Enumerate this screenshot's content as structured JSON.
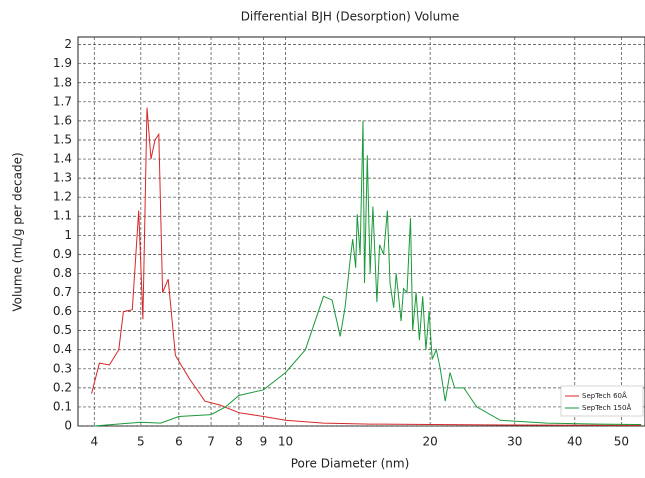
{
  "chart_data": {
    "type": "line",
    "title": "Differential BJH (Desorption) Volume",
    "x_label": "Pore Diameter (nm)",
    "y_label": "Volume (mL/g per decade)",
    "x_scale": "log",
    "grid": true,
    "legend": "bottom-right",
    "xlim": [
      3.7,
      56
    ],
    "ylim": [
      0,
      2.04
    ],
    "xticks": [
      4,
      5,
      6,
      7,
      8,
      9,
      10,
      20,
      30,
      40,
      50
    ],
    "yticks": [
      0,
      0.1,
      0.2,
      0.3,
      0.4,
      0.5,
      0.6,
      0.7,
      0.8,
      0.9,
      1,
      1.1,
      1.2,
      1.3,
      1.4,
      1.5,
      1.6,
      1.7,
      1.8,
      1.9,
      2
    ],
    "series": [
      {
        "name": "SepTech 60Å",
        "color": "#d62728",
        "x": [
          3.95,
          4.1,
          4.3,
          4.5,
          4.6,
          4.8,
          4.95,
          5.05,
          5.15,
          5.25,
          5.35,
          5.45,
          5.55,
          5.7,
          5.9,
          6.3,
          6.8,
          7.3,
          8,
          9,
          10,
          12,
          15,
          20,
          30,
          55
        ],
        "values": [
          0.17,
          0.33,
          0.32,
          0.4,
          0.6,
          0.61,
          1.13,
          0.56,
          1.67,
          1.4,
          1.5,
          1.53,
          0.7,
          0.77,
          0.37,
          0.25,
          0.13,
          0.11,
          0.07,
          0.05,
          0.03,
          0.015,
          0.01,
          0.008,
          0.005,
          0.003
        ]
      },
      {
        "name": "SepTech 150Å",
        "color": "#1a9a3a",
        "x": [
          4,
          5,
          5.5,
          6,
          7,
          7.5,
          8,
          9,
          10,
          11,
          12,
          12.5,
          13,
          13.3,
          13.6,
          13.8,
          14,
          14.1,
          14.3,
          14.5,
          14.6,
          14.8,
          15,
          15.2,
          15.5,
          15.7,
          16,
          16.3,
          16.5,
          16.8,
          17,
          17.4,
          17.6,
          17.9,
          18.2,
          18.4,
          18.7,
          19,
          19.3,
          19.6,
          19.9,
          20.2,
          20.6,
          21,
          21.5,
          22,
          22.5,
          23.5,
          25,
          28,
          35,
          45,
          55
        ],
        "values": [
          0,
          0.02,
          0.015,
          0.05,
          0.06,
          0.1,
          0.16,
          0.19,
          0.28,
          0.4,
          0.68,
          0.66,
          0.47,
          0.62,
          0.85,
          0.98,
          0.83,
          1.11,
          0.9,
          1.6,
          0.75,
          1.42,
          0.8,
          1.15,
          0.65,
          0.95,
          0.9,
          1.13,
          0.75,
          0.62,
          0.8,
          0.55,
          0.72,
          0.7,
          1.09,
          0.5,
          0.7,
          0.45,
          0.68,
          0.4,
          0.6,
          0.35,
          0.4,
          0.3,
          0.13,
          0.28,
          0.2,
          0.2,
          0.1,
          0.03,
          0.015,
          0.01,
          0.008
        ]
      }
    ]
  }
}
